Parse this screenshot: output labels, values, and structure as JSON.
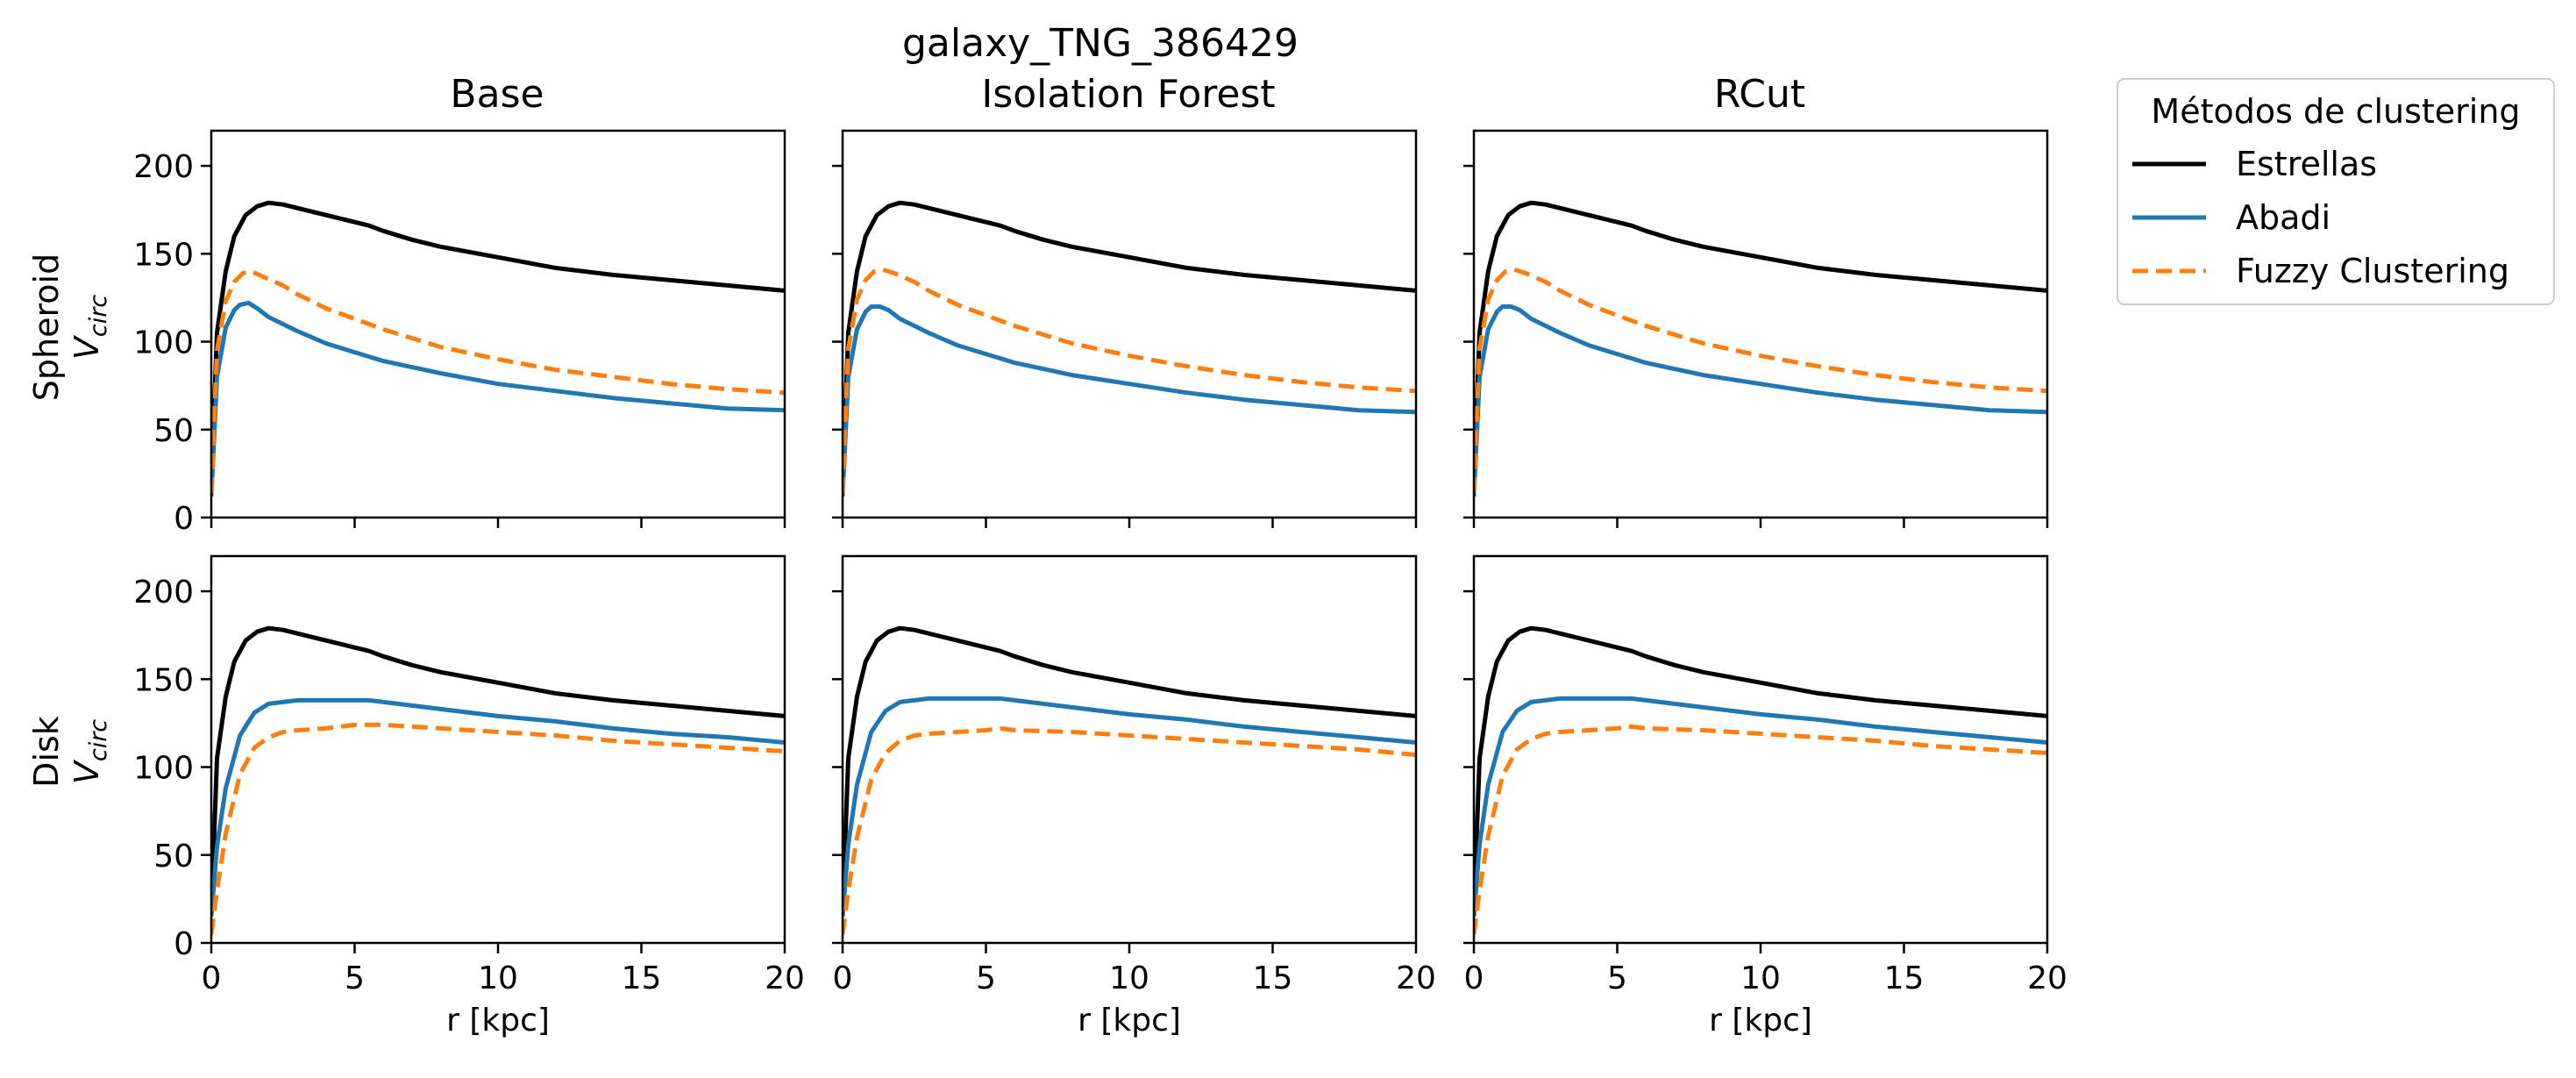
{
  "figure": {
    "suptitle_line1": "galaxy_TNG_386429",
    "legend_title": "Métodos de clustering"
  },
  "colors": {
    "Estrellas": "#000000",
    "Abadi": "#1f77b4",
    "Fuzzy Clustering": "#ff7f0e"
  },
  "legend": [
    "Estrellas",
    "Abadi",
    "Fuzzy Clustering"
  ],
  "columns": [
    "Base",
    "Isolation Forest",
    "RCut"
  ],
  "rows": [
    {
      "label": "Spheroid",
      "ylabel_main": "V",
      "ylabel_sub": "circ"
    },
    {
      "label": "Disk",
      "ylabel_main": "V",
      "ylabel_sub": "circ"
    }
  ],
  "chart_data": [
    {
      "type": "line",
      "row": "Spheroid",
      "column": "Base",
      "xlabel": "r [kpc]",
      "xlim": [
        0,
        20
      ],
      "ylim": [
        0,
        220
      ],
      "xticks": [
        0,
        5,
        10,
        15,
        20
      ],
      "yticks": [
        0,
        50,
        100,
        150,
        200
      ],
      "legend_position": "outside-right",
      "series": [
        {
          "name": "Estrellas",
          "style": "solid",
          "x": [
            0,
            0.2,
            0.5,
            0.8,
            1.2,
            1.6,
            2.0,
            2.5,
            3,
            4,
            5,
            5.5,
            6,
            7,
            8,
            10,
            12,
            14,
            16,
            18,
            20
          ],
          "y": [
            18,
            105,
            140,
            160,
            172,
            177,
            179,
            178,
            176,
            172,
            168,
            166,
            163,
            158,
            154,
            148,
            142,
            138,
            135,
            132,
            129
          ]
        },
        {
          "name": "Abadi",
          "style": "solid",
          "x": [
            0,
            0.2,
            0.5,
            0.8,
            1.0,
            1.3,
            1.6,
            2,
            3,
            4,
            5,
            6,
            8,
            10,
            12,
            14,
            16,
            18,
            20
          ],
          "y": [
            12,
            80,
            108,
            118,
            121,
            122,
            119,
            114,
            106,
            99,
            94,
            89,
            82,
            76,
            72,
            68,
            65,
            62,
            61
          ]
        },
        {
          "name": "Fuzzy Clustering",
          "style": "dashed",
          "x": [
            0,
            0.2,
            0.5,
            0.8,
            1.1,
            1.4,
            1.8,
            2.5,
            3,
            4,
            5,
            6,
            8,
            10,
            12,
            14,
            16,
            18,
            20
          ],
          "y": [
            14,
            95,
            123,
            134,
            139,
            140,
            137,
            132,
            127,
            119,
            113,
            107,
            97,
            90,
            84,
            80,
            76,
            73,
            71
          ]
        }
      ]
    },
    {
      "type": "line",
      "row": "Spheroid",
      "column": "Isolation Forest",
      "xlabel": "r [kpc]",
      "xlim": [
        0,
        20
      ],
      "ylim": [
        0,
        220
      ],
      "xticks": [
        0,
        5,
        10,
        15,
        20
      ],
      "yticks": [
        0,
        50,
        100,
        150,
        200
      ],
      "legend_position": "outside-right",
      "series": [
        {
          "name": "Estrellas",
          "style": "solid",
          "x": [
            0,
            0.2,
            0.5,
            0.8,
            1.2,
            1.6,
            2.0,
            2.5,
            3,
            4,
            5,
            5.5,
            6,
            7,
            8,
            10,
            12,
            14,
            16,
            18,
            20
          ],
          "y": [
            18,
            105,
            140,
            160,
            172,
            177,
            179,
            178,
            176,
            172,
            168,
            166,
            163,
            158,
            154,
            148,
            142,
            138,
            135,
            132,
            129
          ]
        },
        {
          "name": "Abadi",
          "style": "solid",
          "x": [
            0,
            0.2,
            0.5,
            0.8,
            1.0,
            1.3,
            1.6,
            2,
            3,
            4,
            5,
            6,
            8,
            10,
            12,
            14,
            16,
            18,
            20
          ],
          "y": [
            12,
            80,
            107,
            117,
            120,
            120,
            118,
            113,
            105,
            98,
            93,
            88,
            81,
            76,
            71,
            67,
            64,
            61,
            60
          ]
        },
        {
          "name": "Fuzzy Clustering",
          "style": "dashed",
          "x": [
            0,
            0.2,
            0.5,
            0.8,
            1.1,
            1.4,
            1.8,
            2.5,
            3,
            4,
            5,
            6,
            8,
            10,
            12,
            14,
            16,
            18,
            20
          ],
          "y": [
            14,
            96,
            124,
            135,
            140,
            141,
            139,
            134,
            129,
            121,
            115,
            109,
            99,
            92,
            86,
            81,
            77,
            74,
            72
          ]
        }
      ]
    },
    {
      "type": "line",
      "row": "Spheroid",
      "column": "RCut",
      "xlabel": "r [kpc]",
      "xlim": [
        0,
        20
      ],
      "ylim": [
        0,
        220
      ],
      "xticks": [
        0,
        5,
        10,
        15,
        20
      ],
      "yticks": [
        0,
        50,
        100,
        150,
        200
      ],
      "legend_position": "outside-right",
      "series": [
        {
          "name": "Estrellas",
          "style": "solid",
          "x": [
            0,
            0.2,
            0.5,
            0.8,
            1.2,
            1.6,
            2.0,
            2.5,
            3,
            4,
            5,
            5.5,
            6,
            7,
            8,
            10,
            12,
            14,
            16,
            18,
            20
          ],
          "y": [
            18,
            105,
            140,
            160,
            172,
            177,
            179,
            178,
            176,
            172,
            168,
            166,
            163,
            158,
            154,
            148,
            142,
            138,
            135,
            132,
            129
          ]
        },
        {
          "name": "Abadi",
          "style": "solid",
          "x": [
            0,
            0.2,
            0.5,
            0.8,
            1.0,
            1.3,
            1.6,
            2,
            3,
            4,
            5,
            6,
            8,
            10,
            12,
            14,
            16,
            18,
            20
          ],
          "y": [
            12,
            80,
            107,
            117,
            120,
            120,
            118,
            113,
            105,
            98,
            93,
            88,
            81,
            76,
            71,
            67,
            64,
            61,
            60
          ]
        },
        {
          "name": "Fuzzy Clustering",
          "style": "dashed",
          "x": [
            0,
            0.2,
            0.5,
            0.8,
            1.1,
            1.4,
            1.8,
            2.5,
            3,
            4,
            5,
            6,
            8,
            10,
            12,
            14,
            16,
            18,
            20
          ],
          "y": [
            14,
            96,
            124,
            135,
            140,
            141,
            139,
            134,
            129,
            121,
            115,
            109,
            99,
            92,
            86,
            81,
            77,
            74,
            72
          ]
        }
      ]
    },
    {
      "type": "line",
      "row": "Disk",
      "column": "Base",
      "xlabel": "r [kpc]",
      "xlim": [
        0,
        20
      ],
      "ylim": [
        0,
        220
      ],
      "xticks": [
        0,
        5,
        10,
        15,
        20
      ],
      "yticks": [
        0,
        50,
        100,
        150,
        200
      ],
      "legend_position": "outside-right",
      "series": [
        {
          "name": "Estrellas",
          "style": "solid",
          "x": [
            0,
            0.2,
            0.5,
            0.8,
            1.2,
            1.6,
            2.0,
            2.5,
            3,
            4,
            5,
            5.5,
            6,
            7,
            8,
            10,
            12,
            14,
            16,
            18,
            20
          ],
          "y": [
            18,
            105,
            140,
            160,
            172,
            177,
            179,
            178,
            176,
            172,
            168,
            166,
            163,
            158,
            154,
            148,
            142,
            138,
            135,
            132,
            129
          ]
        },
        {
          "name": "Abadi",
          "style": "solid",
          "x": [
            0,
            0.2,
            0.5,
            1.0,
            1.5,
            2.0,
            2.5,
            3,
            3.5,
            4,
            5,
            5.5,
            6,
            8,
            10,
            12,
            14,
            16,
            18,
            20
          ],
          "y": [
            15,
            55,
            88,
            118,
            131,
            136,
            137,
            138,
            138,
            138,
            138,
            138,
            137,
            133,
            129,
            126,
            122,
            119,
            117,
            114
          ]
        },
        {
          "name": "Fuzzy Clustering",
          "style": "dashed",
          "x": [
            0,
            0.2,
            0.5,
            1.0,
            1.5,
            2.0,
            2.5,
            3,
            4,
            5,
            5.5,
            6,
            8,
            10,
            12,
            14,
            16,
            18,
            20
          ],
          "y": [
            5,
            30,
            62,
            96,
            111,
            117,
            120,
            121,
            122,
            124,
            124,
            124,
            122,
            120,
            118,
            115,
            113,
            111,
            109
          ]
        }
      ]
    },
    {
      "type": "line",
      "row": "Disk",
      "column": "Isolation Forest",
      "xlabel": "r [kpc]",
      "xlim": [
        0,
        20
      ],
      "ylim": [
        0,
        220
      ],
      "xticks": [
        0,
        5,
        10,
        15,
        20
      ],
      "yticks": [
        0,
        50,
        100,
        150,
        200
      ],
      "legend_position": "outside-right",
      "series": [
        {
          "name": "Estrellas",
          "style": "solid",
          "x": [
            0,
            0.2,
            0.5,
            0.8,
            1.2,
            1.6,
            2.0,
            2.5,
            3,
            4,
            5,
            5.5,
            6,
            7,
            8,
            10,
            12,
            14,
            16,
            18,
            20
          ],
          "y": [
            18,
            105,
            140,
            160,
            172,
            177,
            179,
            178,
            176,
            172,
            168,
            166,
            163,
            158,
            154,
            148,
            142,
            138,
            135,
            132,
            129
          ]
        },
        {
          "name": "Abadi",
          "style": "solid",
          "x": [
            0,
            0.2,
            0.5,
            1.0,
            1.5,
            2.0,
            2.5,
            3,
            3.5,
            4,
            5,
            5.5,
            6,
            8,
            10,
            12,
            14,
            16,
            18,
            20
          ],
          "y": [
            15,
            56,
            90,
            120,
            132,
            137,
            138,
            139,
            139,
            139,
            139,
            139,
            138,
            134,
            130,
            127,
            123,
            120,
            117,
            114
          ]
        },
        {
          "name": "Fuzzy Clustering",
          "style": "dashed",
          "x": [
            0,
            0.2,
            0.5,
            1.0,
            1.5,
            2.0,
            2.5,
            3,
            4,
            5,
            5.5,
            6,
            8,
            10,
            12,
            14,
            16,
            18,
            20
          ],
          "y": [
            5,
            30,
            60,
            93,
            108,
            115,
            118,
            119,
            120,
            121,
            122,
            121,
            120,
            118,
            116,
            114,
            112,
            110,
            107
          ]
        }
      ]
    },
    {
      "type": "line",
      "row": "Disk",
      "column": "RCut",
      "xlabel": "r [kpc]",
      "xlim": [
        0,
        20
      ],
      "ylim": [
        0,
        220
      ],
      "xticks": [
        0,
        5,
        10,
        15,
        20
      ],
      "yticks": [
        0,
        50,
        100,
        150,
        200
      ],
      "legend_position": "outside-right",
      "series": [
        {
          "name": "Estrellas",
          "style": "solid",
          "x": [
            0,
            0.2,
            0.5,
            0.8,
            1.2,
            1.6,
            2.0,
            2.5,
            3,
            4,
            5,
            5.5,
            6,
            7,
            8,
            10,
            12,
            14,
            16,
            18,
            20
          ],
          "y": [
            18,
            105,
            140,
            160,
            172,
            177,
            179,
            178,
            176,
            172,
            168,
            166,
            163,
            158,
            154,
            148,
            142,
            138,
            135,
            132,
            129
          ]
        },
        {
          "name": "Abadi",
          "style": "solid",
          "x": [
            0,
            0.2,
            0.5,
            1.0,
            1.5,
            2.0,
            2.5,
            3,
            3.5,
            4,
            5,
            5.5,
            6,
            8,
            10,
            12,
            14,
            16,
            18,
            20
          ],
          "y": [
            15,
            56,
            90,
            120,
            132,
            137,
            138,
            139,
            139,
            139,
            139,
            139,
            138,
            134,
            130,
            127,
            123,
            120,
            117,
            114
          ]
        },
        {
          "name": "Fuzzy Clustering",
          "style": "dashed",
          "x": [
            0,
            0.2,
            0.5,
            1.0,
            1.5,
            2.0,
            2.5,
            3,
            4,
            5,
            5.5,
            6,
            8,
            10,
            12,
            14,
            16,
            18,
            20
          ],
          "y": [
            5,
            30,
            61,
            95,
            110,
            116,
            119,
            120,
            121,
            122,
            123,
            122,
            121,
            119,
            117,
            115,
            112,
            110,
            108
          ]
        }
      ]
    }
  ]
}
